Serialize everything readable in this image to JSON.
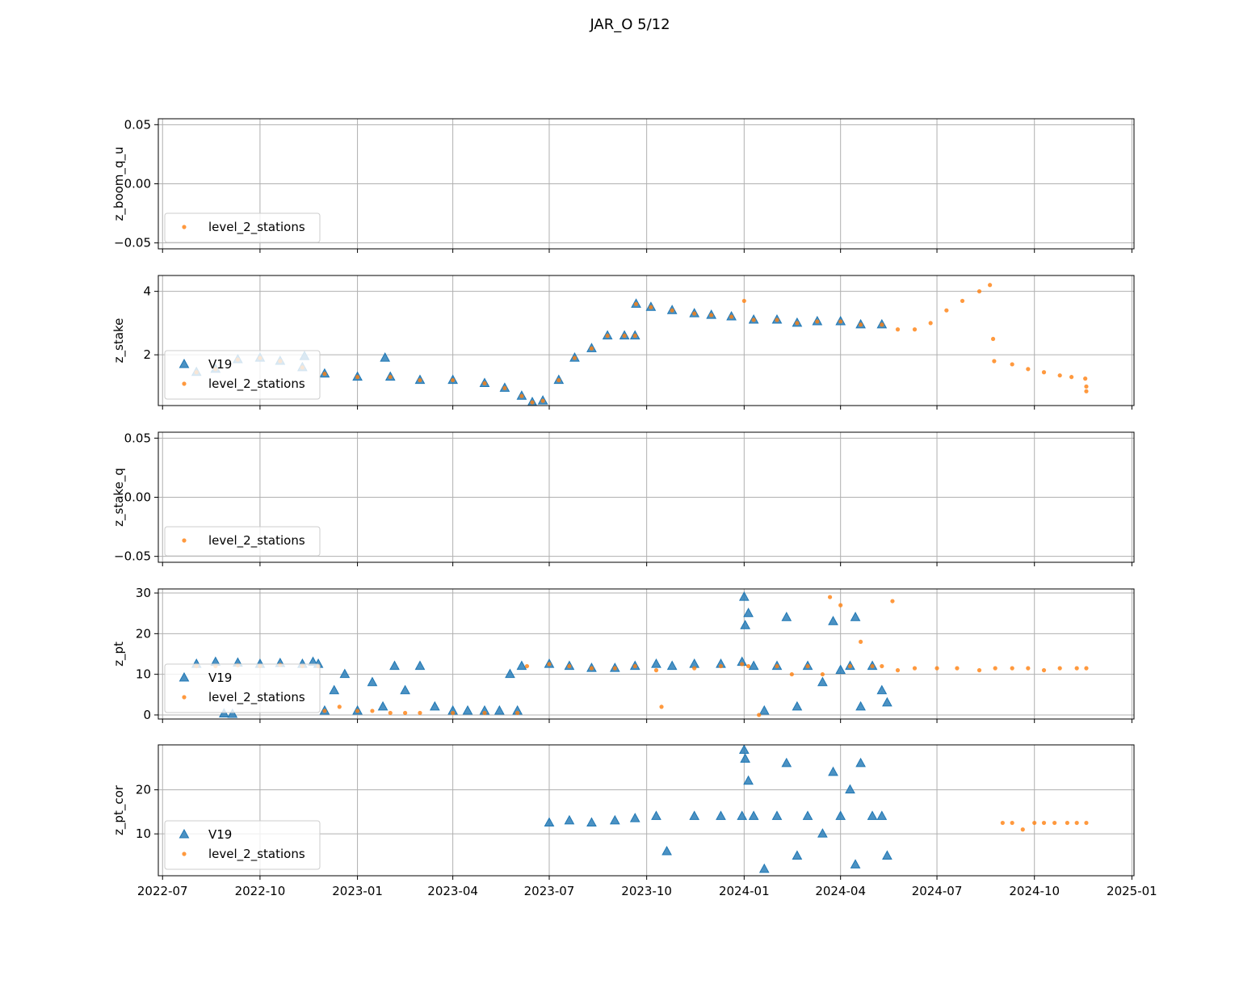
{
  "figure": {
    "title": "JAR_O 5/12"
  },
  "chart_data": [
    {
      "type": "scatter",
      "ylabel": "z_boom_q_u",
      "xlim": [
        "2022-06-27",
        "2025-01-03"
      ],
      "ylim": [
        -0.055,
        0.055
      ],
      "yticks": [
        -0.05,
        0.0,
        0.05
      ],
      "ytick_labels": [
        "−0.05",
        "0.00",
        "0.05"
      ],
      "grid": true,
      "legend": {
        "position": "lower-left",
        "entries": [
          "level_2_stations"
        ]
      },
      "series": []
    },
    {
      "type": "scatter",
      "ylabel": "z_stake",
      "xlim": [
        "2022-06-27",
        "2025-01-03"
      ],
      "ylim": [
        0.4,
        4.5
      ],
      "yticks": [
        2,
        4
      ],
      "ytick_labels": [
        "2",
        "4"
      ],
      "grid": true,
      "legend": {
        "position": "lower-left",
        "entries": [
          "V19",
          "level_2_stations"
        ]
      },
      "series": [
        {
          "name": "V19",
          "marker": "triangle",
          "color": "#1f77b4",
          "x": [
            "2022-08-02",
            "2022-08-20",
            "2022-09-10",
            "2022-10-01",
            "2022-10-20",
            "2022-11-10",
            "2022-12-01",
            "2023-01-01",
            "2023-02-01",
            "2023-03-01",
            "2023-04-01",
            "2023-05-01",
            "2023-05-20",
            "2023-06-05",
            "2023-06-15",
            "2023-06-25",
            "2023-07-10",
            "2023-07-25",
            "2023-08-10",
            "2023-08-25",
            "2023-09-10",
            "2023-09-20",
            "2023-09-21",
            "2023-10-05",
            "2023-10-25",
            "2023-11-15",
            "2023-12-01",
            "2023-12-20",
            "2024-01-10",
            "2024-02-01",
            "2024-02-20",
            "2024-03-10",
            "2024-04-01",
            "2024-04-20",
            "2024-05-10",
            "2022-11-12",
            "2023-01-27"
          ],
          "y": [
            1.45,
            1.55,
            1.85,
            1.9,
            1.8,
            1.6,
            1.4,
            1.3,
            1.3,
            1.2,
            1.2,
            1.1,
            0.95,
            0.7,
            0.5,
            0.55,
            1.2,
            1.9,
            2.2,
            2.6,
            2.6,
            2.6,
            3.6,
            3.5,
            3.4,
            3.3,
            3.25,
            3.2,
            3.1,
            3.1,
            3.0,
            3.05,
            3.05,
            2.95,
            2.95,
            1.95,
            1.9
          ]
        },
        {
          "name": "level_2_stations",
          "marker": "dot",
          "color": "#ff7f0e",
          "x": [
            "2022-08-02",
            "2022-08-20",
            "2022-09-10",
            "2022-10-01",
            "2022-10-20",
            "2022-11-10",
            "2022-12-01",
            "2023-01-01",
            "2023-02-01",
            "2023-03-01",
            "2023-04-01",
            "2023-05-01",
            "2023-05-20",
            "2023-06-05",
            "2023-06-15",
            "2023-06-25",
            "2023-07-10",
            "2023-07-25",
            "2023-08-10",
            "2023-08-25",
            "2023-09-10",
            "2023-09-20",
            "2023-09-21",
            "2023-10-05",
            "2023-10-25",
            "2023-11-15",
            "2023-12-01",
            "2023-12-20",
            "2024-01-01",
            "2024-01-10",
            "2024-02-01",
            "2024-02-20",
            "2024-03-10",
            "2024-04-01",
            "2024-04-20",
            "2024-05-10",
            "2024-05-25",
            "2024-06-10",
            "2024-06-25",
            "2024-07-10",
            "2024-07-25",
            "2024-08-10",
            "2024-08-20",
            "2024-08-23",
            "2024-08-24",
            "2024-09-10",
            "2024-09-25",
            "2024-10-10",
            "2024-10-25",
            "2024-11-05",
            "2024-11-18",
            "2024-11-19",
            "2024-11-19"
          ],
          "y": [
            1.45,
            1.55,
            1.85,
            1.9,
            1.8,
            1.6,
            1.4,
            1.3,
            1.3,
            1.2,
            1.2,
            1.1,
            0.95,
            0.7,
            0.5,
            0.55,
            1.2,
            1.9,
            2.2,
            2.6,
            2.6,
            2.6,
            3.6,
            3.5,
            3.4,
            3.3,
            3.25,
            3.2,
            3.7,
            3.1,
            3.1,
            3.0,
            3.05,
            3.05,
            2.95,
            2.95,
            2.8,
            2.8,
            3.0,
            3.4,
            3.7,
            4.0,
            4.2,
            2.5,
            1.8,
            1.7,
            1.55,
            1.45,
            1.35,
            1.3,
            1.25,
            1.0,
            0.85
          ]
        }
      ]
    },
    {
      "type": "scatter",
      "ylabel": "z_stake_q",
      "xlim": [
        "2022-06-27",
        "2025-01-03"
      ],
      "ylim": [
        -0.055,
        0.055
      ],
      "yticks": [
        -0.05,
        0.0,
        0.05
      ],
      "ytick_labels": [
        "−0.05",
        "0.00",
        "0.05"
      ],
      "grid": true,
      "legend": {
        "position": "lower-left",
        "entries": [
          "level_2_stations"
        ]
      },
      "series": []
    },
    {
      "type": "scatter",
      "ylabel": "z_pt",
      "xlim": [
        "2022-06-27",
        "2025-01-03"
      ],
      "ylim": [
        -1,
        31
      ],
      "yticks": [
        0,
        10,
        20,
        30
      ],
      "ytick_labels": [
        "0",
        "10",
        "20",
        "30"
      ],
      "grid": true,
      "legend": {
        "position": "lower-left",
        "entries": [
          "V19",
          "level_2_stations"
        ]
      },
      "series": [
        {
          "name": "V19",
          "marker": "triangle",
          "color": "#1f77b4",
          "x": [
            "2022-08-02",
            "2022-08-20",
            "2022-09-10",
            "2022-10-01",
            "2022-10-20",
            "2022-11-10",
            "2022-11-25",
            "2022-08-28",
            "2022-09-05",
            "2022-11-20",
            "2022-12-01",
            "2022-12-10",
            "2022-12-20",
            "2023-01-01",
            "2023-01-15",
            "2023-01-25",
            "2023-02-05",
            "2023-02-15",
            "2023-03-01",
            "2023-03-15",
            "2023-04-01",
            "2023-04-15",
            "2023-05-01",
            "2023-05-15",
            "2023-06-01",
            "2023-06-05",
            "2023-05-25",
            "2023-07-01",
            "2023-07-20",
            "2023-08-10",
            "2023-09-01",
            "2023-09-20",
            "2023-10-10",
            "2023-10-25",
            "2023-11-15",
            "2023-12-10",
            "2023-12-30",
            "2024-01-01",
            "2024-01-02",
            "2024-01-05",
            "2024-01-10",
            "2024-01-20",
            "2024-02-01",
            "2024-02-10",
            "2024-02-20",
            "2024-03-01",
            "2024-03-15",
            "2024-03-25",
            "2024-04-01",
            "2024-04-10",
            "2024-04-15",
            "2024-04-20",
            "2024-05-01",
            "2024-05-10",
            "2024-05-15"
          ],
          "y": [
            12.5,
            13,
            12.8,
            12.5,
            12.7,
            12.5,
            12.5,
            0.3,
            0.2,
            13,
            1,
            6,
            10,
            1,
            8,
            2,
            12,
            6,
            12,
            2,
            1,
            1,
            1,
            1,
            1,
            12,
            10,
            12.5,
            12,
            11.5,
            11.5,
            12,
            12.5,
            12,
            12.5,
            12.5,
            13,
            29,
            22,
            25,
            12,
            1,
            12,
            24,
            2,
            12,
            8,
            23,
            11,
            12,
            24,
            2,
            12,
            6,
            3
          ]
        },
        {
          "name": "level_2_stations",
          "marker": "dot",
          "color": "#ff7f0e",
          "x": [
            "2022-08-02",
            "2022-08-20",
            "2022-09-10",
            "2022-10-01",
            "2022-10-20",
            "2022-11-10",
            "2022-11-25",
            "2022-12-01",
            "2022-12-15",
            "2023-01-01",
            "2023-01-15",
            "2023-02-01",
            "2023-02-15",
            "2023-03-01",
            "2023-04-01",
            "2023-05-01",
            "2023-06-01",
            "2023-06-10",
            "2023-07-01",
            "2023-07-20",
            "2023-08-10",
            "2023-09-01",
            "2023-09-20",
            "2023-10-10",
            "2023-10-15",
            "2023-11-15",
            "2023-12-10",
            "2023-12-30",
            "2024-01-05",
            "2024-01-15",
            "2024-02-01",
            "2024-02-15",
            "2024-03-01",
            "2024-03-15",
            "2024-03-22",
            "2024-04-01",
            "2024-04-10",
            "2024-04-20",
            "2024-05-01",
            "2024-05-10",
            "2024-05-20",
            "2024-05-25",
            "2024-06-10",
            "2024-07-01",
            "2024-07-20",
            "2024-08-10",
            "2024-08-25",
            "2024-09-10",
            "2024-09-25",
            "2024-10-10",
            "2024-10-25",
            "2024-11-10",
            "2024-11-19"
          ],
          "y": [
            12,
            12,
            12.2,
            12,
            12.3,
            12,
            12,
            1,
            2,
            1,
            1,
            0.5,
            0.5,
            0.5,
            0.5,
            0.5,
            0.5,
            12,
            12.5,
            12,
            11.5,
            11.5,
            12,
            11,
            2,
            11.5,
            12,
            12.5,
            12,
            0,
            12,
            10,
            12,
            10,
            29,
            27,
            12,
            18,
            12,
            12,
            28,
            11,
            11.5,
            11.5,
            11.5,
            11,
            11.5,
            11.5,
            11.5,
            11,
            11.5,
            11.5,
            11.5
          ]
        }
      ]
    },
    {
      "type": "scatter",
      "ylabel": "z_pt_cor",
      "xlim": [
        "2022-06-27",
        "2025-01-03"
      ],
      "ylim": [
        0.5,
        30.2
      ],
      "yticks": [
        10,
        20
      ],
      "ytick_labels": [
        "10",
        "20"
      ],
      "grid": true,
      "legend": {
        "position": "lower-left",
        "entries": [
          "V19",
          "level_2_stations"
        ]
      },
      "series": [
        {
          "name": "V19",
          "marker": "triangle",
          "color": "#1f77b4",
          "x": [
            "2023-07-01",
            "2023-07-20",
            "2023-08-10",
            "2023-09-01",
            "2023-09-20",
            "2023-10-10",
            "2023-10-20",
            "2023-11-15",
            "2023-12-10",
            "2023-12-30",
            "2024-01-01",
            "2024-01-02",
            "2024-01-05",
            "2024-01-10",
            "2024-01-20",
            "2024-02-01",
            "2024-02-10",
            "2024-02-20",
            "2024-03-01",
            "2024-03-15",
            "2024-03-25",
            "2024-04-01",
            "2024-04-10",
            "2024-04-15",
            "2024-04-20",
            "2024-05-01",
            "2024-05-10",
            "2024-05-15"
          ],
          "y": [
            12.5,
            13,
            12.5,
            13,
            13.5,
            14,
            6,
            14,
            14,
            14,
            29,
            27,
            22,
            14,
            2,
            14,
            26,
            5,
            14,
            10,
            24,
            14,
            20,
            3,
            26,
            14,
            14,
            5
          ]
        },
        {
          "name": "level_2_stations",
          "marker": "dot",
          "color": "#ff7f0e",
          "x": [
            "2024-09-01",
            "2024-09-10",
            "2024-09-20",
            "2024-10-01",
            "2024-10-10",
            "2024-10-20",
            "2024-11-01",
            "2024-11-10",
            "2024-11-19"
          ],
          "y": [
            12.5,
            12.5,
            11,
            12.5,
            12.5,
            12.5,
            12.5,
            12.5,
            12.5
          ]
        }
      ]
    }
  ],
  "shared_x_axis": {
    "tick_labels": [
      "2022-07",
      "2022-10",
      "2023-01",
      "2023-04",
      "2023-07",
      "2023-10",
      "2024-01",
      "2024-04",
      "2024-07",
      "2024-10",
      "2025-01"
    ]
  },
  "colors": {
    "V19": "#1f77b4",
    "level_2_stations": "#ff7f0e",
    "grid": "#b0b0b0"
  }
}
